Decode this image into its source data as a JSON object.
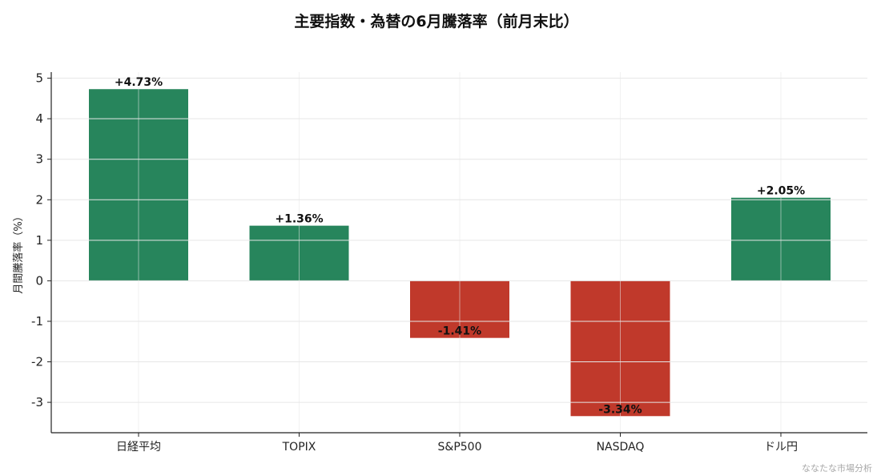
{
  "chart_data": {
    "type": "bar",
    "title": "主要指数・為替の6月騰落率（前月末比）",
    "ylabel": "月間騰落率（%）",
    "xlabel": "",
    "categories": [
      "日経平均",
      "TOPIX",
      "S&P500",
      "NASDAQ",
      "ドル円"
    ],
    "values": [
      4.73,
      1.36,
      -1.41,
      -3.34,
      2.05
    ],
    "value_labels": [
      "+4.73%",
      "+1.36%",
      "-1.41%",
      "-3.34%",
      "+2.05%"
    ],
    "ylim": [
      -3.75,
      5.15
    ],
    "yticks": [
      5,
      4,
      3,
      2,
      1,
      0,
      -1,
      -2,
      -3
    ],
    "ytick_labels": [
      "5",
      "4",
      "3",
      "2",
      "1",
      "0",
      "-1",
      "-2",
      "-3"
    ],
    "grid": true,
    "legend": "none",
    "colors": {
      "positive": "#27855c",
      "negative": "#c0392b"
    }
  },
  "watermark": "ななたな市場分析"
}
